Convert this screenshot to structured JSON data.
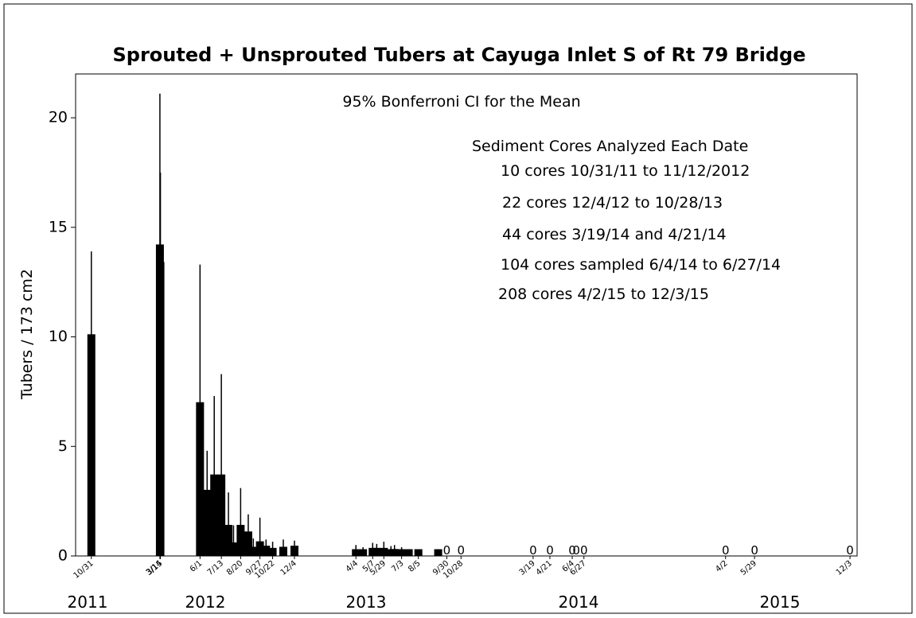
{
  "chart_data": {
    "type": "bar",
    "title": "Sprouted + Unsprouted Tubers at Cayuga Inlet S of Rt 79 Bridge",
    "y_label": "Tubers / 173 cm2",
    "annotations": [
      "95% Bonferroni CI for the Mean",
      "Sediment Cores Analyzed Each Date",
      "10 cores 10/31/11 to 11/12/2012",
      "22 cores 12/4/12 to 10/28/13",
      "44 cores 3/19/14 and 4/21/14",
      "104 cores sampled 6/4/14 to 6/27/14",
      "208 cores 4/2/15 to 12/3/15"
    ],
    "year_labels": [
      "2011",
      "2012",
      "2013",
      "2014",
      "2015"
    ],
    "color": "#000000",
    "x": [
      "2011-10-31",
      "2012-03-14",
      "2012-03-15",
      "2012-06-01",
      "2012-06-15",
      "2012-06-29",
      "2012-07-13",
      "2012-07-27",
      "2012-08-06",
      "2012-08-20",
      "2012-09-04",
      "2012-09-14",
      "2012-09-27",
      "2012-10-09",
      "2012-10-22",
      "2012-11-12",
      "2012-12-04",
      "2013-04-04",
      "2013-04-18",
      "2013-05-07",
      "2013-05-15",
      "2013-05-29",
      "2013-06-12",
      "2013-06-19",
      "2013-07-03",
      "2013-07-17",
      "2013-08-05",
      "2013-09-13",
      "2013-09-30",
      "2013-10-28",
      "2014-03-19",
      "2014-04-21",
      "2014-06-04",
      "2014-06-12",
      "2014-06-27",
      "2015-04-02",
      "2015-05-29",
      "2015-12-03"
    ],
    "values": [
      10.1,
      14.2,
      13.4,
      7.0,
      3.0,
      3.7,
      3.7,
      1.4,
      0.6,
      1.4,
      1.1,
      0.4,
      0.65,
      0.45,
      0.35,
      0.4,
      0.45,
      0.25,
      0.25,
      0.35,
      0.35,
      0.35,
      0.25,
      0.3,
      0.25,
      0.1,
      0.05,
      0.05,
      0,
      0,
      0,
      0,
      0,
      0,
      0,
      0,
      0,
      0
    ],
    "errors": [
      3.8,
      6.9,
      4.1,
      6.3,
      1.8,
      3.6,
      4.6,
      1.5,
      0.8,
      1.7,
      0.8,
      0.4,
      1.1,
      0.3,
      0.3,
      0.35,
      0.25,
      0.25,
      0.15,
      0.25,
      0.2,
      0.3,
      0.2,
      0.2,
      0.15,
      0.1,
      null,
      null,
      null,
      null,
      null,
      null,
      null,
      null,
      null,
      null,
      null,
      null
    ],
    "value_labels": [
      null,
      null,
      null,
      null,
      null,
      null,
      null,
      null,
      null,
      null,
      null,
      null,
      null,
      null,
      null,
      null,
      null,
      null,
      null,
      null,
      null,
      null,
      null,
      null,
      null,
      null,
      null,
      null,
      "0",
      "0",
      "0",
      "0",
      "0",
      "0",
      "0",
      "0",
      "0",
      "0"
    ],
    "xlim": [
      "2011-09-30",
      "2015-12-17"
    ],
    "xticks": [
      {
        "value": "2011-10-31",
        "label": "10/31"
      },
      {
        "value": "2012-03-14",
        "label": "3/14"
      },
      {
        "value": "2012-03-15",
        "label": "3/15"
      },
      {
        "value": "2012-06-01",
        "label": "6/1"
      },
      {
        "value": "2012-07-13",
        "label": "7/13"
      },
      {
        "value": "2012-08-20",
        "label": "8/20"
      },
      {
        "value": "2012-09-27",
        "label": "9/27"
      },
      {
        "value": "2012-10-22",
        "label": "10/22"
      },
      {
        "value": "2012-12-04",
        "label": "12/4"
      },
      {
        "value": "2013-04-04",
        "label": "4/4"
      },
      {
        "value": "2013-05-07",
        "label": "5/7"
      },
      {
        "value": "2013-05-29",
        "label": "5/29"
      },
      {
        "value": "2013-07-03",
        "label": "7/3"
      },
      {
        "value": "2013-08-05",
        "label": "8/5"
      },
      {
        "value": "2013-09-30",
        "label": "9/30"
      },
      {
        "value": "2013-10-28",
        "label": "10/28"
      },
      {
        "value": "2014-03-19",
        "label": "3/19"
      },
      {
        "value": "2014-04-21",
        "label": "4/21"
      },
      {
        "value": "2014-06-04",
        "label": "6/4"
      },
      {
        "value": "2014-06-27",
        "label": "6/27"
      },
      {
        "value": "2015-04-02",
        "label": "4/2"
      },
      {
        "value": "2015-05-29",
        "label": "5/29"
      },
      {
        "value": "2015-12-03",
        "label": "12/3"
      }
    ],
    "ylim": [
      0,
      22
    ],
    "yticks": [
      0,
      5,
      10,
      15,
      20
    ]
  }
}
